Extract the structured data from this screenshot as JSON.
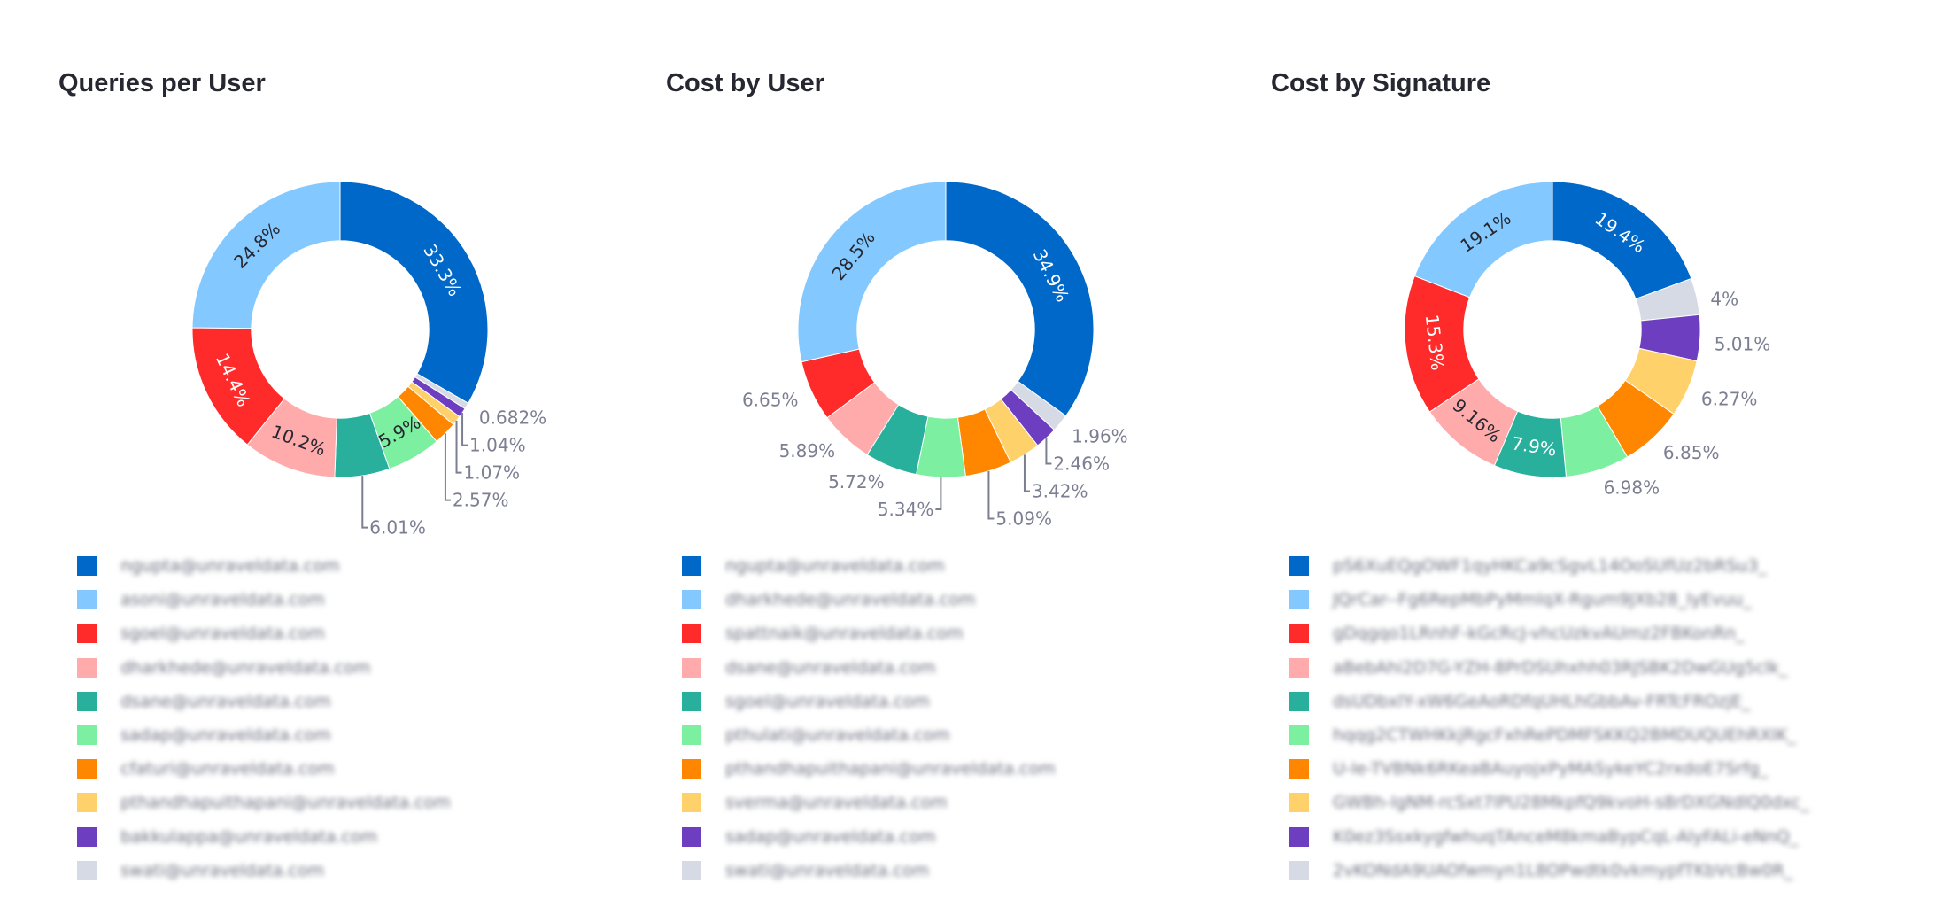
{
  "colors": [
    "#0068c9",
    "#83c9ff",
    "#ff2b2b",
    "#ffabab",
    "#29b09d",
    "#7defa1",
    "#ff8700",
    "#ffd16a",
    "#6d3fc0",
    "#d5dae5"
  ],
  "outside_label_color": "#7c7f92",
  "chart_data": [
    {
      "type": "pie",
      "title": "Queries per User",
      "hole": 0.6,
      "direction": "counterclockwise",
      "categories": [
        "ngupta@unraveldata.com",
        "asoni@unraveldata.com",
        "sgoel@unraveldata.com",
        "dharkhede@unraveldata.com",
        "dsane@unraveldata.com",
        "sadap@unraveldata.com",
        "cfaturi@unraveldata.com",
        "pthandhapuithapani@unraveldata.com",
        "bakkulappa@unraveldata.com",
        "swati@unraveldata.com"
      ],
      "values": [
        33.3,
        24.8,
        14.4,
        10.2,
        6.01,
        5.9,
        2.57,
        1.07,
        1.04,
        0.682
      ],
      "label_position": [
        "inside",
        "inside",
        "inside",
        "inside",
        "outside",
        "inside",
        "outside",
        "outside",
        "outside",
        "outside"
      ],
      "legend": "bottom"
    },
    {
      "type": "pie",
      "title": "Cost by User",
      "hole": 0.6,
      "direction": "counterclockwise",
      "categories": [
        "ngupta@unraveldata.com",
        "dharkhede@unraveldata.com",
        "spattnaik@unraveldata.com",
        "dsane@unraveldata.com",
        "sgoel@unraveldata.com",
        "pthulati@unraveldata.com",
        "pthandhapuithapani@unraveldata.com",
        "sverma@unraveldata.com",
        "sadap@unraveldata.com",
        "swati@unraveldata.com"
      ],
      "values": [
        34.9,
        28.5,
        6.65,
        5.89,
        5.72,
        5.34,
        5.09,
        3.42,
        2.46,
        1.96
      ],
      "label_position": [
        "inside",
        "inside",
        "outside",
        "outside",
        "outside",
        "outside",
        "outside",
        "outside",
        "outside",
        "outside"
      ],
      "legend": "bottom"
    },
    {
      "type": "pie",
      "title": "Cost by Signature",
      "hole": 0.6,
      "direction": "counterclockwise",
      "categories": [
        "pS6XuEQgOWF1qyHKCa9cSgvL14OoSUfUz2bRSu3_",
        "JQrCar--Fg6RepMbPyMmlqX-Rgum9JXb28_lyEvuu_",
        "gDqgqo1LRnhF-kGcRcJ-vhcUzkvAUmz2FBKonRn_",
        "aBebAhi2D7G-YZH-8PrDSUhxhh03RJSBK2DwGUg5clk_",
        "dsUDbxlY-xW6GeAoRDfqUHLhGbbAv-FRTcFROzjE_",
        "hqqg2CTWHKkjRgcFxhRePDMFSKKQ2BMDUQUEhRXIK_",
        "U-le-TVBNk6RKeaBAuyojxPyMASykeYC2rxdoE7Srfg_",
        "GWBh-lgNM-rcSxt7lPU28MkpfQ9kvoH-s8rDXGNdlQ0dxc_",
        "K0ez3SsxkygfwhuqTAnceM8kmaBypCqL-AlyFALi-eNnQ_",
        "2vKONdA9UAOfwmyn1L8OPwdtk0vkmypfTKbVcBw0R_"
      ],
      "values": [
        19.4,
        19.1,
        15.3,
        9.16,
        7.9,
        6.98,
        6.85,
        6.27,
        5.01,
        4
      ],
      "label_position": [
        "inside",
        "inside",
        "inside",
        "inside",
        "inside",
        "outside",
        "outside",
        "outside",
        "outside",
        "outside"
      ],
      "legend": "bottom"
    }
  ]
}
